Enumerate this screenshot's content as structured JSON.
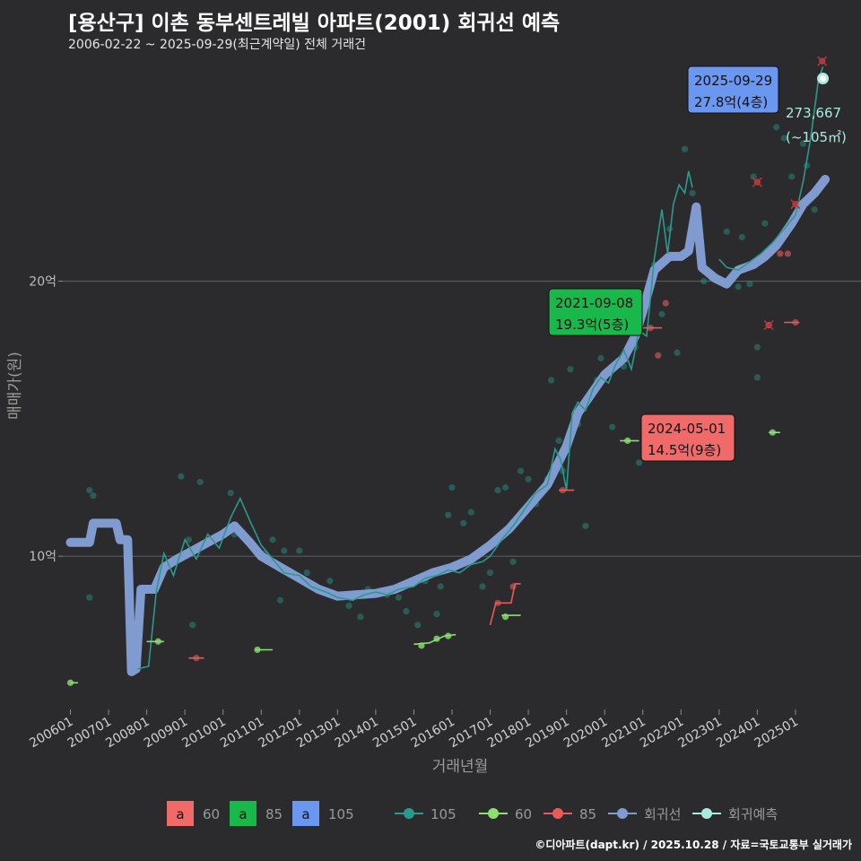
{
  "header": {
    "title": "[용산구] 이촌 동부센트레빌 아파트(2001) 회귀선 예측",
    "subtitle": "2006-02-22 ~ 2025-09-29(최근계약일) 전체 거래건"
  },
  "footer": {
    "caption": "©디아파트(dapt.kr) / 2025.10.28 / 자료=국토교통부 실거래가"
  },
  "colors": {
    "background": "#2b2b2d",
    "grid": "#5a5a5c",
    "s60": "#f06a6a",
    "s85": "#19b84a",
    "s105": "#6a98f0",
    "trade105": "#2a9a8c",
    "trade60": "#8ce070",
    "trade85": "#e85a5a",
    "regression": "#7f9bd0",
    "forecast": "#a8ece0"
  },
  "chart_data": {
    "type": "line",
    "title": "[용산구] 이촌 동부센트레빌 아파트(2001) 회귀선 예측",
    "xlabel": "거래년월",
    "ylabel": "매매가(원)",
    "xlim": [
      2005.8,
      2026.6
    ],
    "ylim": [
      4.3,
      28.2
    ],
    "x_ticks": [
      2006,
      2007,
      2008,
      2009,
      2010,
      2011,
      2012,
      2013,
      2014,
      2015,
      2016,
      2017,
      2018,
      2019,
      2020,
      2021,
      2022,
      2023,
      2024,
      2025
    ],
    "x_tick_labels": [
      "200601",
      "200701",
      "200801",
      "200901",
      "201001",
      "201101",
      "201201",
      "201301",
      "201401",
      "201501",
      "201601",
      "201701",
      "201801",
      "201901",
      "202001",
      "202101",
      "202201",
      "202301",
      "202401",
      "202501"
    ],
    "y_ticks": [
      10,
      20
    ],
    "y_tick_labels": [
      "10억",
      "20억"
    ],
    "series": [
      {
        "name": "회귀선",
        "points": [
          [
            2006.0,
            10.5
          ],
          [
            2006.5,
            10.5
          ],
          [
            2006.6,
            11.2
          ],
          [
            2007.2,
            11.2
          ],
          [
            2007.3,
            10.6
          ],
          [
            2007.5,
            10.6
          ],
          [
            2007.6,
            5.8
          ],
          [
            2007.72,
            5.9
          ],
          [
            2007.85,
            8.8
          ],
          [
            2008.2,
            8.8
          ],
          [
            2008.45,
            9.6
          ],
          [
            2008.8,
            9.9
          ],
          [
            2009.2,
            10.2
          ],
          [
            2009.6,
            10.5
          ],
          [
            2010.0,
            10.8
          ],
          [
            2010.3,
            11.1
          ],
          [
            2010.7,
            10.5
          ],
          [
            2011.0,
            10.0
          ],
          [
            2011.5,
            9.6
          ],
          [
            2012.0,
            9.2
          ],
          [
            2012.5,
            8.8
          ],
          [
            2013.0,
            8.55
          ],
          [
            2013.5,
            8.6
          ],
          [
            2014.0,
            8.65
          ],
          [
            2014.5,
            8.8
          ],
          [
            2015.0,
            9.1
          ],
          [
            2015.5,
            9.4
          ],
          [
            2016.0,
            9.6
          ],
          [
            2016.5,
            9.9
          ],
          [
            2017.0,
            10.4
          ],
          [
            2017.5,
            11.0
          ],
          [
            2018.0,
            11.8
          ],
          [
            2018.5,
            12.6
          ],
          [
            2019.0,
            14.0
          ],
          [
            2019.3,
            15.2
          ],
          [
            2019.7,
            16.0
          ],
          [
            2020.0,
            16.6
          ],
          [
            2020.5,
            17.2
          ],
          [
            2020.8,
            18.0
          ],
          [
            2021.0,
            18.9
          ],
          [
            2021.3,
            20.4
          ],
          [
            2021.7,
            20.9
          ],
          [
            2022.0,
            20.9
          ],
          [
            2022.2,
            21.1
          ],
          [
            2022.4,
            22.7
          ],
          [
            2022.55,
            20.5
          ],
          [
            2022.9,
            20.1
          ],
          [
            2023.2,
            19.9
          ],
          [
            2023.5,
            20.4
          ],
          [
            2023.9,
            20.6
          ],
          [
            2024.2,
            20.9
          ],
          [
            2024.5,
            21.3
          ],
          [
            2024.9,
            22.1
          ],
          [
            2025.2,
            22.8
          ],
          [
            2025.5,
            23.2
          ],
          [
            2025.78,
            23.7
          ]
        ]
      },
      {
        "name": "105",
        "points": [
          [
            2007.75,
            5.9
          ],
          [
            2008.05,
            6.0
          ],
          [
            2008.25,
            8.7
          ],
          [
            2008.45,
            10.1
          ],
          [
            2008.7,
            9.3
          ],
          [
            2009.0,
            10.6
          ],
          [
            2009.3,
            9.9
          ],
          [
            2009.6,
            10.8
          ],
          [
            2009.9,
            10.3
          ],
          [
            2010.2,
            11.4
          ],
          [
            2010.45,
            12.1
          ],
          [
            2010.7,
            11.3
          ],
          [
            2011.0,
            10.4
          ],
          [
            2011.3,
            9.9
          ],
          [
            2011.6,
            9.4
          ],
          [
            2012.0,
            9.3
          ],
          [
            2012.3,
            8.9
          ],
          [
            2012.7,
            8.7
          ],
          [
            2013.0,
            8.5
          ],
          [
            2013.4,
            8.4
          ],
          [
            2013.7,
            8.6
          ],
          [
            2014.0,
            8.7
          ],
          [
            2014.3,
            8.6
          ],
          [
            2014.6,
            8.8
          ],
          [
            2015.0,
            8.9
          ],
          [
            2015.3,
            9.2
          ],
          [
            2015.6,
            9.3
          ],
          [
            2015.9,
            9.5
          ],
          [
            2016.2,
            9.4
          ],
          [
            2016.5,
            9.7
          ],
          [
            2016.8,
            9.8
          ],
          [
            2017.0,
            10.0
          ],
          [
            2017.3,
            10.6
          ],
          [
            2017.6,
            11.1
          ],
          [
            2017.9,
            11.7
          ],
          [
            2018.2,
            12.3
          ],
          [
            2018.5,
            12.6
          ],
          [
            2018.7,
            13.9
          ],
          [
            2018.85,
            13.5
          ],
          [
            2019.0,
            12.4
          ],
          [
            2019.15,
            15.2
          ],
          [
            2019.3,
            15.6
          ],
          [
            2019.5,
            15.3
          ],
          [
            2019.7,
            16.1
          ],
          [
            2019.9,
            16.5
          ],
          [
            2020.1,
            16.3
          ],
          [
            2020.3,
            17.0
          ],
          [
            2020.5,
            17.5
          ],
          [
            2020.7,
            16.8
          ],
          [
            2020.9,
            18.2
          ],
          [
            2021.1,
            18.0
          ],
          [
            2021.3,
            20.8
          ],
          [
            2021.5,
            22.6
          ],
          [
            2021.65,
            21.0
          ],
          [
            2021.8,
            22.8
          ],
          [
            2021.95,
            23.5
          ],
          [
            2022.1,
            23.2
          ],
          [
            2022.2,
            24.0
          ],
          [
            2022.3,
            23.4
          ]
        ],
        "segment2": [
          [
            2023.0,
            20.8
          ],
          [
            2023.2,
            20.5
          ],
          [
            2023.5,
            20.4
          ],
          [
            2023.8,
            20.7
          ],
          [
            2024.1,
            21.0
          ],
          [
            2024.4,
            21.4
          ],
          [
            2024.7,
            21.9
          ],
          [
            2025.0,
            22.4
          ],
          [
            2025.2,
            23.6
          ],
          [
            2025.4,
            25.2
          ],
          [
            2025.6,
            27.3
          ],
          [
            2025.72,
            27.8
          ]
        ]
      },
      {
        "name": "60",
        "points": [
          [
            2006.0,
            5.4
          ],
          [
            2006.2,
            5.4
          ]
        ],
        "segments": [
          [
            [
              2008.0,
              6.9
            ],
            [
              2008.45,
              6.9
            ]
          ],
          [
            [
              2010.85,
              6.6
            ],
            [
              2011.3,
              6.6
            ]
          ],
          [
            [
              2015.0,
              6.8
            ],
            [
              2015.4,
              6.85
            ],
            [
              2015.8,
              7.1
            ],
            [
              2016.1,
              7.15
            ]
          ],
          [
            [
              2017.3,
              7.85
            ],
            [
              2017.8,
              7.85
            ]
          ],
          [
            [
              2020.4,
              14.2
            ],
            [
              2020.9,
              14.2
            ]
          ],
          [
            [
              2024.3,
              14.5
            ],
            [
              2024.6,
              14.5
            ]
          ]
        ]
      },
      {
        "name": "85",
        "segments": [
          [
            [
              2009.1,
              6.3
            ],
            [
              2009.5,
              6.3
            ]
          ],
          [
            [
              2017.0,
              7.5
            ],
            [
              2017.15,
              8.3
            ],
            [
              2017.55,
              8.3
            ],
            [
              2017.65,
              9.0
            ],
            [
              2017.8,
              9.0
            ]
          ],
          [
            [
              2018.8,
              12.4
            ],
            [
              2019.2,
              12.4
            ]
          ],
          [
            [
              2021.0,
              18.3
            ],
            [
              2021.5,
              18.3
            ]
          ],
          [
            [
              2024.7,
              18.5
            ],
            [
              2025.1,
              18.5
            ]
          ]
        ]
      }
    ],
    "trade_points_105": [
      [
        2006.5,
        12.4
      ],
      [
        2006.6,
        12.2
      ],
      [
        2006.5,
        8.5
      ],
      [
        2008.9,
        12.9
      ],
      [
        2009.1,
        10.6
      ],
      [
        2009.2,
        7.5
      ],
      [
        2009.4,
        12.7
      ],
      [
        2010.2,
        12.3
      ],
      [
        2010.3,
        10.8
      ],
      [
        2011.1,
        10.1
      ],
      [
        2011.3,
        10.6
      ],
      [
        2011.5,
        8.4
      ],
      [
        2011.6,
        10.2
      ],
      [
        2012.0,
        10.2
      ],
      [
        2012.2,
        9.4
      ],
      [
        2012.4,
        8.9
      ],
      [
        2012.8,
        9.1
      ],
      [
        2013.3,
        8.2
      ],
      [
        2013.6,
        7.8
      ],
      [
        2013.8,
        8.8
      ],
      [
        2014.3,
        8.6
      ],
      [
        2014.6,
        8.5
      ],
      [
        2014.8,
        8.0
      ],
      [
        2015.1,
        7.5
      ],
      [
        2015.3,
        9.1
      ],
      [
        2015.6,
        7.9
      ],
      [
        2015.7,
        8.9
      ],
      [
        2015.9,
        11.5
      ],
      [
        2016.0,
        12.5
      ],
      [
        2016.3,
        11.2
      ],
      [
        2016.5,
        11.6
      ],
      [
        2016.8,
        8.9
      ],
      [
        2017.0,
        9.4
      ],
      [
        2017.2,
        12.4
      ],
      [
        2017.4,
        12.5
      ],
      [
        2017.6,
        9.8
      ],
      [
        2017.8,
        13.1
      ],
      [
        2018.0,
        12.8
      ],
      [
        2018.2,
        11.9
      ],
      [
        2018.5,
        12.8
      ],
      [
        2018.6,
        16.4
      ],
      [
        2018.8,
        14.2
      ],
      [
        2018.9,
        13.1
      ],
      [
        2019.1,
        16.8
      ],
      [
        2019.3,
        14.8
      ],
      [
        2019.5,
        11.1
      ],
      [
        2019.8,
        16.4
      ],
      [
        2019.9,
        17.2
      ],
      [
        2020.2,
        14.7
      ],
      [
        2020.5,
        16.9
      ],
      [
        2020.8,
        17.6
      ],
      [
        2020.9,
        13.4
      ],
      [
        2021.1,
        19.2
      ],
      [
        2021.3,
        20.6
      ],
      [
        2021.5,
        18.8
      ],
      [
        2021.7,
        21.9
      ],
      [
        2021.9,
        17.4
      ],
      [
        2022.1,
        24.8
      ],
      [
        2022.3,
        23.2
      ],
      [
        2022.5,
        21.1
      ],
      [
        2022.6,
        20.0
      ],
      [
        2022.8,
        20.1
      ],
      [
        2023.2,
        21.8
      ],
      [
        2023.5,
        19.8
      ],
      [
        2023.6,
        21.6
      ],
      [
        2023.8,
        19.9
      ],
      [
        2023.9,
        23.8
      ],
      [
        2024.0,
        17.6
      ],
      [
        2024.0,
        16.5
      ],
      [
        2024.2,
        22.1
      ],
      [
        2024.3,
        18.4
      ],
      [
        2024.5,
        25.6
      ],
      [
        2024.7,
        25.2
      ],
      [
        2024.9,
        23.8
      ],
      [
        2025.2,
        25.0
      ],
      [
        2025.3,
        24.2
      ],
      [
        2025.5,
        22.6
      ],
      [
        2025.7,
        27.3
      ]
    ],
    "trade_points_60": [
      [
        2006.0,
        5.4
      ],
      [
        2008.3,
        6.9
      ],
      [
        2010.9,
        6.6
      ],
      [
        2015.2,
        6.75
      ],
      [
        2015.6,
        7.0
      ],
      [
        2015.9,
        7.1
      ],
      [
        2017.4,
        7.8
      ],
      [
        2020.6,
        14.2
      ],
      [
        2024.4,
        14.5
      ]
    ],
    "trade_points_85": [
      [
        2009.3,
        6.3
      ],
      [
        2017.2,
        8.3
      ],
      [
        2017.6,
        8.9
      ],
      [
        2018.9,
        12.4
      ],
      [
        2021.2,
        18.3
      ],
      [
        2021.4,
        17.3
      ],
      [
        2021.6,
        19.2
      ],
      [
        2024.0,
        23.6
      ],
      [
        2024.3,
        18.4
      ],
      [
        2024.6,
        21.0
      ],
      [
        2024.8,
        21.0
      ],
      [
        2025.0,
        22.8
      ],
      [
        2025.0,
        18.5
      ],
      [
        2025.7,
        28.0
      ]
    ],
    "forecast_point": [
      2025.72,
      27.367
    ],
    "annotations": [
      {
        "name": "max",
        "label_date": "2025-09-29",
        "label_price": "27.8억(4층)",
        "series": "105",
        "x": 2025.72,
        "y": 27.8
      },
      {
        "name": "s85",
        "label_date": "2021-09-08",
        "label_price": "19.3억(5층)",
        "series": "85",
        "x": 2021.7,
        "y": 19.3
      },
      {
        "name": "s60",
        "label_date": "2024-05-01",
        "label_price": "14.5억(9층)",
        "series": "60",
        "x": 2024.3,
        "y": 14.5
      }
    ],
    "forecast_label": {
      "value": "273,667",
      "area": "(~105㎡)"
    },
    "legend": {
      "placement": "bottom",
      "fill_items": [
        {
          "glyph": "a",
          "label": "60",
          "color": "#f06a6a"
        },
        {
          "glyph": "a",
          "label": "85",
          "color": "#19b84a"
        },
        {
          "glyph": "a",
          "label": "105",
          "color": "#6a98f0"
        }
      ],
      "line_items": [
        {
          "label": "105",
          "color": "#2a9a8c"
        },
        {
          "label": "60",
          "color": "#8ce070"
        },
        {
          "label": "85",
          "color": "#e85a5a"
        },
        {
          "label": "회귀선",
          "color": "#7f9bd0"
        },
        {
          "label": "회귀예측",
          "color": "#a8ece0"
        }
      ]
    }
  }
}
